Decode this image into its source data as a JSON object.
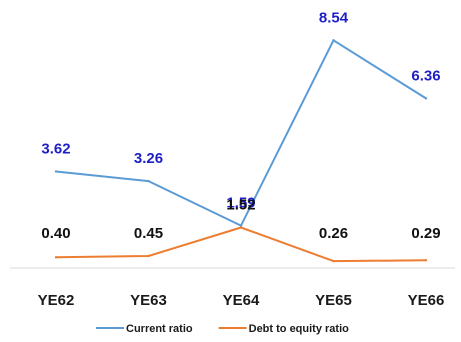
{
  "chart_data": {
    "type": "line",
    "title": "",
    "xlabel": "",
    "ylabel": "",
    "categories": [
      "YE62",
      "YE63",
      "YE64",
      "YE65",
      "YE66"
    ],
    "ylim": [
      0,
      9.6
    ],
    "grid": false,
    "legend_position": "bottom",
    "series": [
      {
        "name": "Current ratio",
        "values": [
          3.62,
          3.26,
          1.59,
          8.54,
          6.36
        ],
        "labels": [
          "3.62",
          "3.26",
          "1.59",
          "8.54",
          "6.36"
        ],
        "color": "#5B9BD5",
        "label_color": "#1F1FC8"
      },
      {
        "name": "Debt to equity ratio",
        "values": [
          0.4,
          0.45,
          1.52,
          0.26,
          0.29
        ],
        "labels": [
          "0.40",
          "0.45",
          "1.52",
          "0.26",
          "0.29"
        ],
        "color": "#ED7D31",
        "label_color": "#111111"
      }
    ]
  }
}
